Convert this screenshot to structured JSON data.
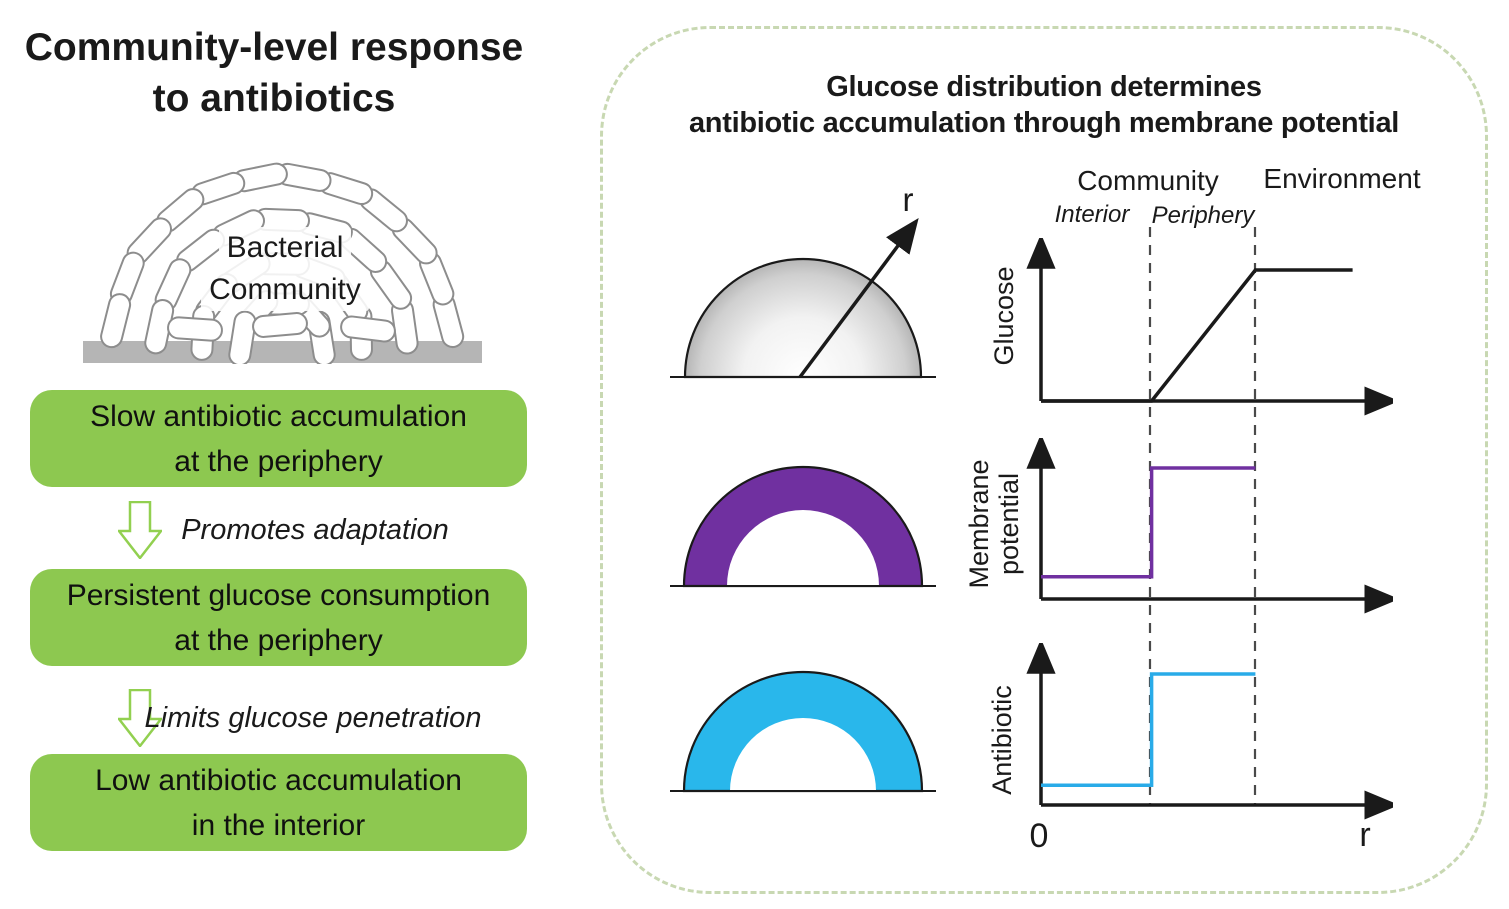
{
  "left_panel": {
    "title": {
      "line1": "Community-level response",
      "line2": "to antibiotics"
    },
    "bacterial_community_label": {
      "line1": "Bacterial",
      "line2": "Community"
    },
    "flow_boxes": [
      {
        "line1": "Slow antibiotic accumulation",
        "line2": "at the periphery"
      },
      {
        "line1": "Persistent glucose consumption",
        "line2": "at the periphery"
      },
      {
        "line1": "Low antibiotic accumulation",
        "line2": "in the interior"
      }
    ],
    "flow_arrows": [
      {
        "label": "Promotes adaptation"
      },
      {
        "label": "Limits glucose penetration"
      }
    ],
    "colors": {
      "box_green": "#8DC850",
      "arrow_green": "#92D050",
      "substrate_gray": "#B5B5B5"
    }
  },
  "right_panel": {
    "title": {
      "line1": "Glucose distribution determines",
      "line2": "antibiotic accumulation through membrane potential"
    },
    "region_labels": {
      "community": "Community",
      "environment": "Environment",
      "interior": "Interior",
      "periphery": "Periphery"
    },
    "dome_radius_label": "r",
    "x_axis_origin_label": "0",
    "x_axis_end_label": "r",
    "colors": {
      "panel_border": "#C8D8B2",
      "membrane_purple": "#7030A0",
      "antibiotic_cyan": "#29B7EB",
      "dome_gray": "#9E9E9E"
    }
  },
  "chart_data": [
    {
      "type": "line",
      "ylabel": "Glucose",
      "xlabel": "r",
      "x_origin_label": "0",
      "x_boundaries": {
        "interior_periphery": 0.33,
        "community_environment": 0.64
      },
      "xlim": [
        0,
        1
      ],
      "ylim": [
        0,
        1
      ],
      "grid": false,
      "series": [
        {
          "name": "Glucose",
          "color": "#1A1A1A",
          "points": [
            [
              0,
              0
            ],
            [
              0.33,
              0
            ],
            [
              0.64,
              1.0
            ],
            [
              0.93,
              1.0
            ]
          ],
          "description": "Zero in community interior, linear rise across periphery, constant high in environment"
        }
      ]
    },
    {
      "type": "line",
      "ylabel": "Membrane potential",
      "xlabel": "r",
      "x_boundaries": {
        "interior_periphery": 0.33,
        "community_environment": 0.64
      },
      "xlim": [
        0,
        1
      ],
      "ylim": [
        0,
        1
      ],
      "grid": false,
      "series": [
        {
          "name": "Membrane potential",
          "color": "#7030A0",
          "points": [
            [
              0,
              0.17
            ],
            [
              0.33,
              0.17
            ],
            [
              0.33,
              1.0
            ],
            [
              0.64,
              1.0
            ]
          ],
          "description": "Low in interior, step up at periphery boundary, high across periphery"
        }
      ]
    },
    {
      "type": "line",
      "ylabel": "Antibiotic",
      "xlabel": "r",
      "x_boundaries": {
        "interior_periphery": 0.33,
        "community_environment": 0.64
      },
      "xlim": [
        0,
        1
      ],
      "ylim": [
        0,
        1
      ],
      "grid": false,
      "series": [
        {
          "name": "Antibiotic",
          "color": "#29ABE8",
          "points": [
            [
              0,
              0.15
            ],
            [
              0.33,
              0.15
            ],
            [
              0.33,
              1.0
            ],
            [
              0.64,
              1.0
            ]
          ],
          "description": "Low in interior, step up at periphery boundary, high across periphery"
        }
      ]
    }
  ]
}
